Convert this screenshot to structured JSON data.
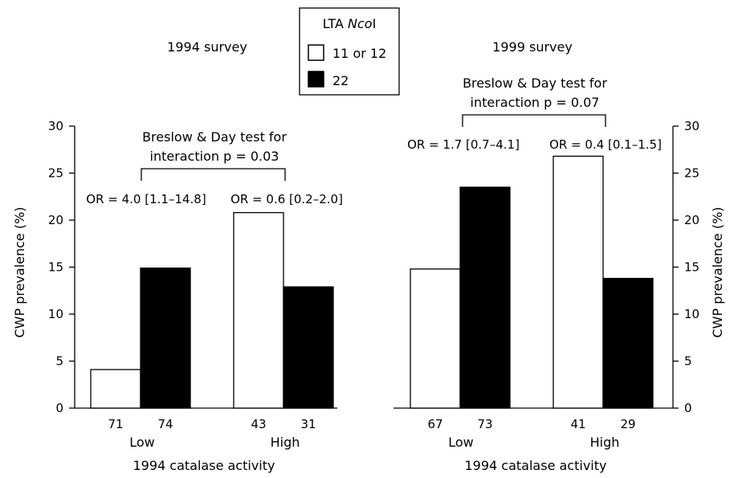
{
  "legend": {
    "title_main": "LTA ",
    "title_italic": "Nco",
    "title_end": "I",
    "items": [
      {
        "label": "11 or 12",
        "color": "#ffffff"
      },
      {
        "label": "22",
        "color": "#000000"
      }
    ]
  },
  "colors": {
    "bar_11_or_12": "#ffffff",
    "bar_22": "#000000",
    "outline": "#000000"
  },
  "chart_data": [
    {
      "type": "bar",
      "title": "1994 survey",
      "xlabel": "1994 catalase activity",
      "ylabel": "CWP prevalence (%)",
      "ylim": [
        0,
        30
      ],
      "yticks": [
        0,
        5,
        10,
        15,
        20,
        25,
        30
      ],
      "y_axis_side": "left",
      "categories": [
        "Low",
        "High"
      ],
      "series": [
        {
          "name": "11 or 12",
          "values": [
            4.1,
            20.8
          ],
          "n": [
            "71",
            "43"
          ]
        },
        {
          "name": "22",
          "values": [
            14.9,
            12.9
          ],
          "n": [
            "74",
            "31"
          ]
        }
      ],
      "odds_ratios": [
        "OR = 4.0 [1.1–14.8]",
        "OR = 0.6 [0.2–2.0]"
      ],
      "interaction_test": [
        "Breslow & Day test for",
        "interaction p = 0.03"
      ]
    },
    {
      "type": "bar",
      "title": "1999 survey",
      "xlabel": "1994 catalase activity",
      "ylabel": "CWP prevalence (%)",
      "ylim": [
        0,
        30
      ],
      "yticks": [
        0,
        5,
        10,
        15,
        20,
        25,
        30
      ],
      "y_axis_side": "right",
      "categories": [
        "Low",
        "High"
      ],
      "series": [
        {
          "name": "11 or 12",
          "values": [
            14.8,
            26.8
          ],
          "n": [
            "67",
            "41"
          ]
        },
        {
          "name": "22",
          "values": [
            23.5,
            13.8
          ],
          "n": [
            "73",
            "29"
          ]
        }
      ],
      "odds_ratios": [
        "OR = 1.7 [0.7–4.1]",
        "OR = 0.4 [0.1–1.5]"
      ],
      "interaction_test": [
        "Breslow & Day test for",
        "interaction p = 0.07"
      ]
    }
  ]
}
